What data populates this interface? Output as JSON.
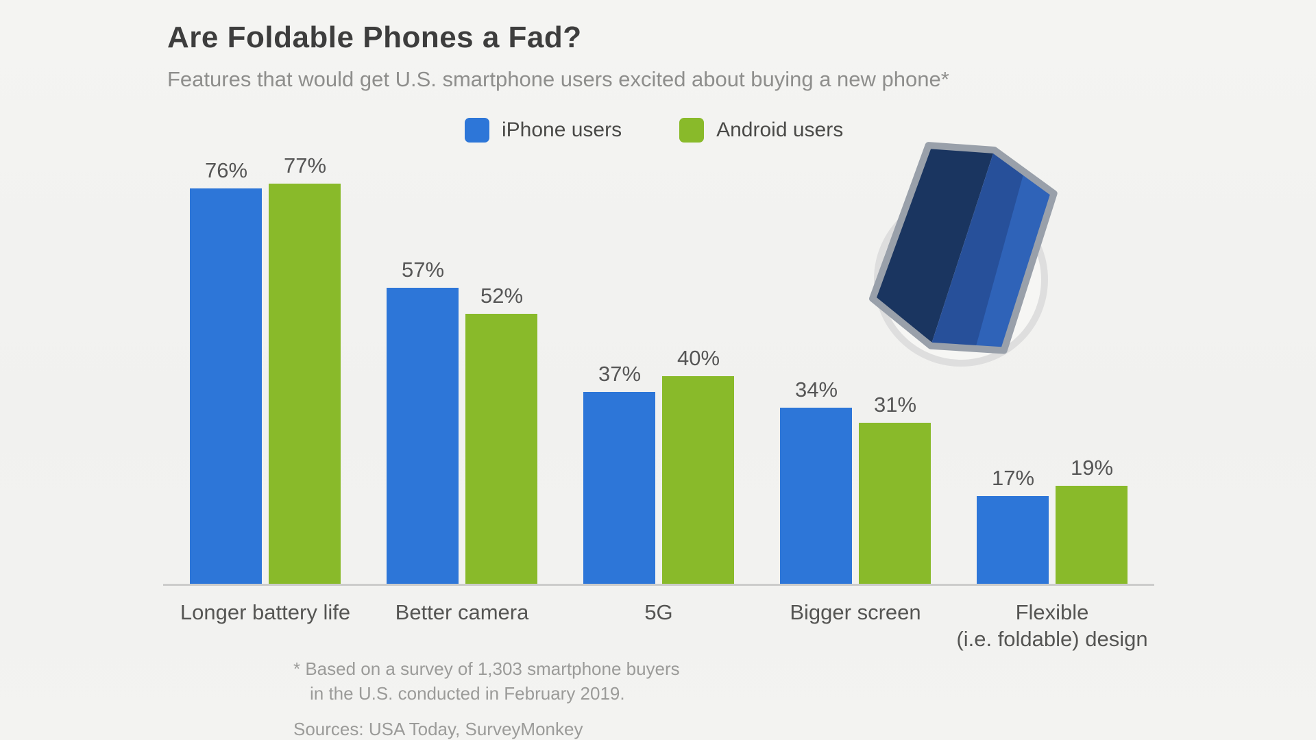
{
  "header": {
    "title": "Are Foldable Phones a Fad?",
    "subtitle": "Features that would get U.S. smartphone users excited about buying a new phone*"
  },
  "legend": {
    "items": [
      {
        "label": "iPhone users",
        "color": "#2d76d8"
      },
      {
        "label": "Android users",
        "color": "#89ba2a"
      }
    ]
  },
  "chart_data": {
    "type": "bar",
    "title": "Are Foldable Phones a Fad?",
    "subtitle": "Features that would get U.S. smartphone users excited about buying a new phone*",
    "categories": [
      "Longer battery life",
      "Better camera",
      "5G",
      "Bigger screen",
      "Flexible (i.e. foldable) design"
    ],
    "category_label_lines": [
      [
        "Longer battery life"
      ],
      [
        "Better camera"
      ],
      [
        "5G"
      ],
      [
        "Bigger screen"
      ],
      [
        "Flexible",
        "(i.e. foldable) design"
      ]
    ],
    "series": [
      {
        "name": "iPhone users",
        "color": "#2d76d8",
        "values": [
          76,
          57,
          37,
          34,
          17
        ]
      },
      {
        "name": "Android users",
        "color": "#89ba2a",
        "values": [
          77,
          52,
          40,
          31,
          19
        ]
      }
    ],
    "value_suffix": "%",
    "ylim": [
      0,
      100
    ],
    "grid": false,
    "legend_position": "top",
    "xlabel": "",
    "ylabel": ""
  },
  "footnote": {
    "line1": "* Based on a survey of 1,303 smartphone buyers",
    "line2": "in the U.S. conducted in February 2019.",
    "sources": "Sources: USA Today, SurveyMonkey"
  },
  "illustration": {
    "name": "foldable-phone-in-circle",
    "circle_color": "#dedede",
    "phone_border": "#99a0aa",
    "phone_left_panel": "#1a3560",
    "phone_right_panel": "#27509a",
    "phone_sheen": "#2f63b8"
  },
  "colors": {
    "background": "#f1f1ef",
    "axis_line": "#cccccb",
    "value_label": "#565656",
    "category_label": "#555553",
    "footnote": "#9b9b99"
  }
}
